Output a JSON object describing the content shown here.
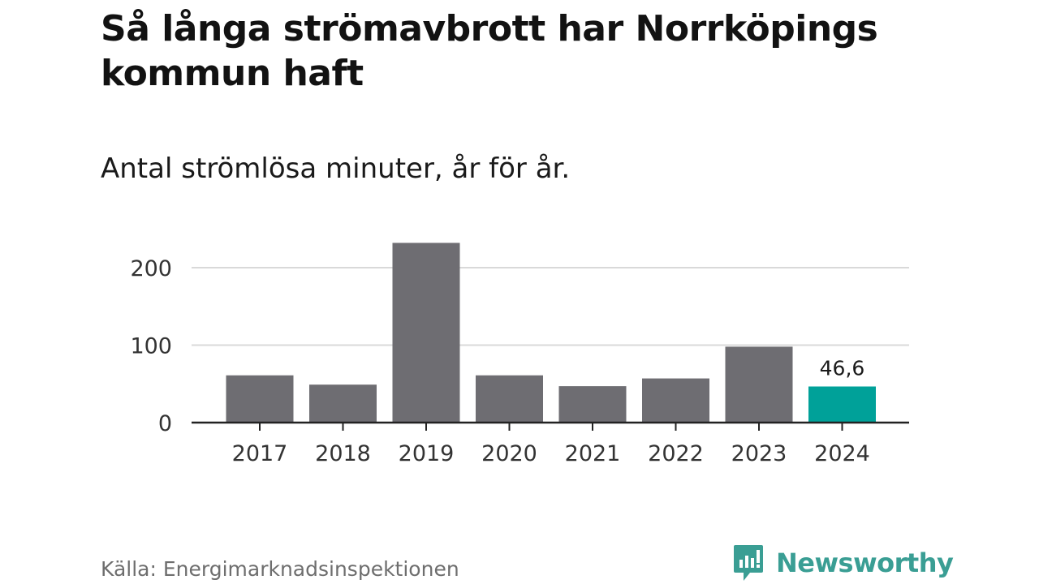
{
  "header": {
    "title": "Så långa strömavbrott har Norrköpings kommun haft",
    "subtitle": "Antal strömlösa minuter, år för år."
  },
  "footer": {
    "source": "Källa: Energimarknadsinspektionen",
    "brand": "Newsworthy"
  },
  "colors": {
    "bar": "#6e6d72",
    "highlight": "#00a199",
    "grid": "#d9d9d9",
    "axis": "#222222",
    "brand": "#3a9e94"
  },
  "chart_data": {
    "type": "bar",
    "categories": [
      "2017",
      "2018",
      "2019",
      "2020",
      "2021",
      "2022",
      "2023",
      "2024"
    ],
    "values": [
      61,
      49,
      232,
      61,
      47,
      57,
      98,
      46.6
    ],
    "highlight_index": 7,
    "data_labels": [
      {
        "index": 7,
        "text": "46,6"
      }
    ],
    "ylim": [
      0,
      240
    ],
    "yticks": [
      0,
      100,
      200
    ],
    "ytick_labels": [
      "0",
      "100",
      "200"
    ],
    "grid": true,
    "xlabel": "",
    "ylabel": ""
  }
}
